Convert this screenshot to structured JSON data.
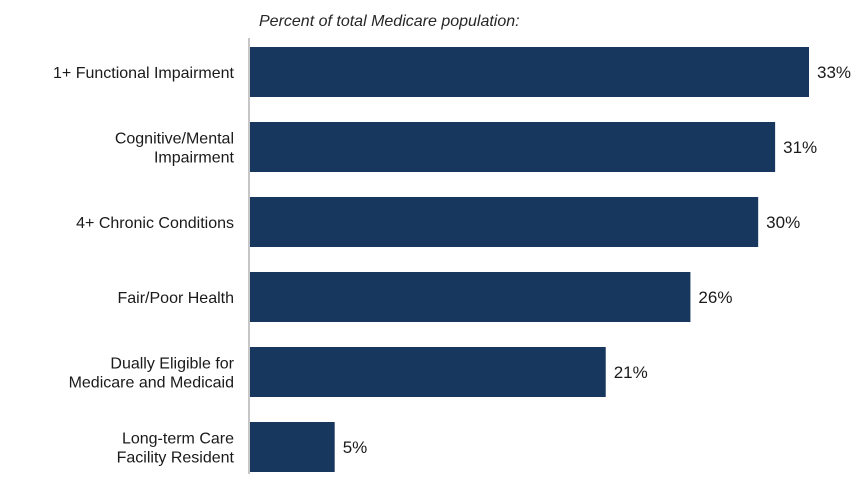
{
  "chart_data": {
    "type": "bar",
    "orientation": "horizontal",
    "subtitle": "Percent of total Medicare population:",
    "categories": [
      [
        "1+ Functional Impairment"
      ],
      [
        "Cognitive/Mental",
        "Impairment"
      ],
      [
        "4+ Chronic Conditions"
      ],
      [
        "Fair/Poor Health"
      ],
      [
        "Dually Eligible for",
        "Medicare and Medicaid"
      ],
      [
        "Long-term Care",
        "Facility Resident"
      ]
    ],
    "values": [
      33,
      31,
      30,
      26,
      21,
      5
    ],
    "value_labels": [
      "33%",
      "31%",
      "30%",
      "26%",
      "21%",
      "5%"
    ],
    "xlim": [
      0,
      33
    ],
    "bar_color": "#17375e",
    "grid": false,
    "legend": "none"
  }
}
